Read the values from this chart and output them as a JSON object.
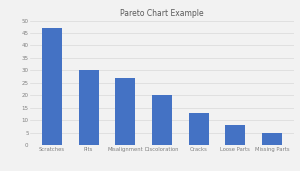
{
  "title": "Pareto Chart Example",
  "categories": [
    "Scratches",
    "Pits",
    "Misalignment",
    "Discoloration",
    "Cracks",
    "Loose Parts",
    "Missing Parts"
  ],
  "values": [
    47,
    30,
    27,
    20,
    13,
    8,
    5
  ],
  "bar_color": "#4472C4",
  "ylim": [
    0,
    50
  ],
  "yticks": [
    0,
    5,
    10,
    15,
    20,
    25,
    30,
    35,
    40,
    45,
    50
  ],
  "title_fontsize": 5.5,
  "tick_fontsize": 4,
  "label_fontsize": 3.8,
  "grid_color": "#D9D9D9",
  "background_color": "#F2F2F2",
  "title_color": "#595959",
  "tick_color": "#808080",
  "bar_width": 0.55
}
